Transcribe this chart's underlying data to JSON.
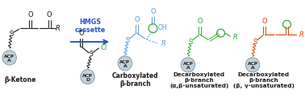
{
  "bg_color": "#ffffff",
  "hmgs_text": "HMGS\ncassette",
  "hmgs_color": "#2255cc",
  "beta_ketone_label": "β-Ketone",
  "carboxylated_label": "Carboxylated\nβ-branch",
  "decarb1_label": "Decarboxylated\nβ-branch\n(α,β-unsaturated)",
  "decarb2_label": "Decarboxylated\nβ-branch\n(β, γ-unsaturated)",
  "black_color": "#1a1a1a",
  "blue_color": "#5599dd",
  "green_color": "#33aa33",
  "orange_color": "#dd4400",
  "acp_fill": "#c0ced8",
  "acp_stroke": "#7a9aaa",
  "label_fontsize": 5.5
}
